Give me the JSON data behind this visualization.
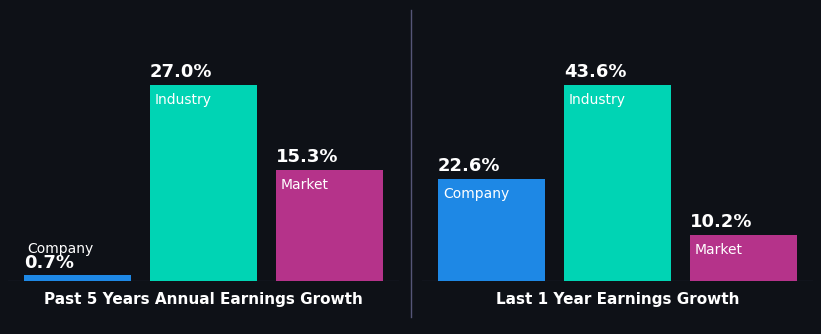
{
  "background_color": "#0e1117",
  "left_title": "Past 5 Years Annual Earnings Growth",
  "right_title": "Last 1 Year Earnings Growth",
  "left_groups": [
    {
      "label": "Company",
      "value": 0.7,
      "color": "#1e88e5"
    },
    {
      "label": "Industry",
      "value": 27.0,
      "color": "#00d4b4"
    },
    {
      "label": "Market",
      "value": 15.3,
      "color": "#b5338a"
    }
  ],
  "right_groups": [
    {
      "label": "Company",
      "value": 22.6,
      "color": "#1e88e5"
    },
    {
      "label": "Industry",
      "value": 43.6,
      "color": "#00d4b4"
    },
    {
      "label": "Market",
      "value": 10.2,
      "color": "#b5338a"
    }
  ],
  "title_color": "#ffffff",
  "label_color": "#ffffff",
  "value_color": "#ffffff",
  "title_fontsize": 11,
  "value_fontsize": 13,
  "label_fontsize": 10,
  "bar_width": 0.85,
  "divider_color": "#555577"
}
